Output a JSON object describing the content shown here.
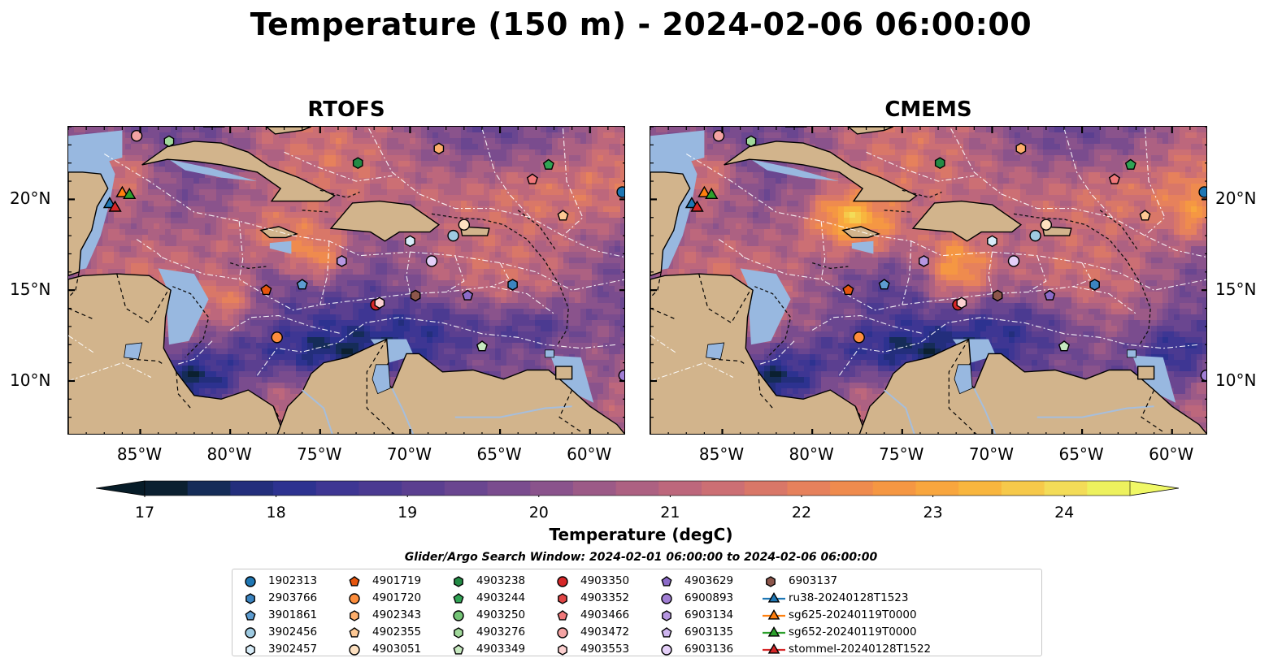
{
  "title": "Temperature (150 m) - 2024-02-06 06:00:00",
  "panels": [
    {
      "title": "RTOFS"
    },
    {
      "title": "CMEMS"
    }
  ],
  "map": {
    "lon_range": [
      -89,
      -58
    ],
    "lat_range": [
      7,
      24
    ],
    "lat_ticks": [
      {
        "value": 20,
        "label": "20°N"
      },
      {
        "value": 15,
        "label": "15°N"
      },
      {
        "value": 10,
        "label": "10°N"
      }
    ],
    "lon_ticks": [
      {
        "value": -85,
        "label": "85°W"
      },
      {
        "value": -80,
        "label": "80°W"
      },
      {
        "value": -75,
        "label": "75°W"
      },
      {
        "value": -70,
        "label": "70°W"
      },
      {
        "value": -65,
        "label": "65°W"
      },
      {
        "value": -60,
        "label": "60°W"
      }
    ],
    "land_color": "#d2b48c",
    "shelf_color": "#98b8e0"
  },
  "colorbar": {
    "min": 17,
    "max": 24.5,
    "ticks": [
      "17",
      "18",
      "19",
      "20",
      "21",
      "22",
      "23",
      "24"
    ],
    "label": "Temperature (degC)",
    "colors": [
      "#0b2030",
      "#152c58",
      "#232e7c",
      "#2d3290",
      "#3e3693",
      "#4b3a91",
      "#5b3f90",
      "#6a4690",
      "#7a4c8e",
      "#8a538c",
      "#9c5a87",
      "#ad6182",
      "#bd677c",
      "#cc6f74",
      "#d97768",
      "#e6815c",
      "#ef8b4e",
      "#f59743",
      "#f8a63e",
      "#f8b63e",
      "#f6c94a",
      "#f3dc58",
      "#edf15e"
    ],
    "under_color": "#071c28",
    "over_color": "#f0f866"
  },
  "search_window": "Glider/Argo Search Window: 2024-02-01 06:00:00 to 2024-02-06 06:00:00",
  "legend": [
    {
      "label": "1902313",
      "shape": "circle",
      "color": "#1f77b4"
    },
    {
      "label": "2903766",
      "shape": "hexagon",
      "color": "#3b84c0"
    },
    {
      "label": "3901861",
      "shape": "pentagon",
      "color": "#5d9cd0"
    },
    {
      "label": "3902456",
      "shape": "circle",
      "color": "#9ecae1"
    },
    {
      "label": "3902457",
      "shape": "hexagon",
      "color": "#d7ecf8"
    },
    {
      "label": "4901719",
      "shape": "pentagon",
      "color": "#e6550d"
    },
    {
      "label": "4901720",
      "shape": "circle",
      "color": "#fd8d3c"
    },
    {
      "label": "4902343",
      "shape": "hexagon",
      "color": "#fdae6b"
    },
    {
      "label": "4902355",
      "shape": "pentagon",
      "color": "#fdc894"
    },
    {
      "label": "4903051",
      "shape": "circle",
      "color": "#fde0c0"
    },
    {
      "label": "4903238",
      "shape": "hexagon",
      "color": "#238b45"
    },
    {
      "label": "4903244",
      "shape": "pentagon",
      "color": "#31a354"
    },
    {
      "label": "4903250",
      "shape": "circle",
      "color": "#74c476"
    },
    {
      "label": "4903276",
      "shape": "hexagon",
      "color": "#a1d99b"
    },
    {
      "label": "4903349",
      "shape": "pentagon",
      "color": "#c7e9c0"
    },
    {
      "label": "4903350",
      "shape": "circle",
      "color": "#d62728"
    },
    {
      "label": "4903352",
      "shape": "hexagon",
      "color": "#e04545"
    },
    {
      "label": "4903466",
      "shape": "pentagon",
      "color": "#f0787a"
    },
    {
      "label": "4903472",
      "shape": "circle",
      "color": "#f4a3a3"
    },
    {
      "label": "4903553",
      "shape": "hexagon",
      "color": "#fcd0d0"
    },
    {
      "label": "4903629",
      "shape": "pentagon",
      "color": "#8c6bc8"
    },
    {
      "label": "6900893",
      "shape": "circle",
      "color": "#a17ed4"
    },
    {
      "label": "6903134",
      "shape": "hexagon",
      "color": "#b696e0"
    },
    {
      "label": "6903135",
      "shape": "pentagon",
      "color": "#cdb4ee"
    },
    {
      "label": "6903136",
      "shape": "circle",
      "color": "#e4cff8"
    },
    {
      "label": "6903137",
      "shape": "hexagon",
      "color": "#8c564b"
    },
    {
      "label": "ru38-20240128T1523",
      "shape": "triangle-line",
      "color": "#1f77b4"
    },
    {
      "label": "sg625-20240119T0000",
      "shape": "triangle-line",
      "color": "#ff7f0e"
    },
    {
      "label": "sg652-20240119T0000",
      "shape": "triangle-line",
      "color": "#2ca02c"
    },
    {
      "label": "stommel-20240128T1522",
      "shape": "triangle-line",
      "color": "#d62728"
    }
  ],
  "floats": [
    {
      "id": "1902313",
      "lon": -58.2,
      "lat": 20.4
    },
    {
      "id": "3902456",
      "lon": -67.6,
      "lat": 18.0
    },
    {
      "id": "4903051",
      "lon": -67.0,
      "lat": 18.6
    },
    {
      "id": "4901720",
      "lon": -77.4,
      "lat": 12.4
    },
    {
      "id": "4901719",
      "lon": -78.0,
      "lat": 15.0
    },
    {
      "id": "3901861",
      "lon": -76.0,
      "lat": 15.3
    },
    {
      "id": "4903244",
      "lon": -62.3,
      "lat": 21.9
    },
    {
      "id": "4903238",
      "lon": -72.9,
      "lat": 22.0
    },
    {
      "id": "4903350",
      "lon": -71.9,
      "lat": 14.2
    },
    {
      "id": "4903466",
      "lon": -63.2,
      "lat": 21.1
    },
    {
      "id": "4903629",
      "lon": -66.8,
      "lat": 14.7
    },
    {
      "id": "6903134",
      "lon": -73.8,
      "lat": 16.6
    },
    {
      "id": "6903136",
      "lon": -68.8,
      "lat": 16.6
    },
    {
      "id": "6903137",
      "lon": -69.7,
      "lat": 14.7
    },
    {
      "id": "4902343",
      "lon": -68.4,
      "lat": 22.8
    },
    {
      "id": "4902355",
      "lon": -61.5,
      "lat": 19.1
    },
    {
      "id": "3902457",
      "lon": -70.0,
      "lat": 17.7
    },
    {
      "id": "2903766",
      "lon": -64.3,
      "lat": 15.3
    },
    {
      "id": "4903349",
      "lon": -66.0,
      "lat": 11.9
    },
    {
      "id": "4903553",
      "lon": -71.7,
      "lat": 14.3
    },
    {
      "id": "6900893",
      "lon": -58.1,
      "lat": 10.3
    },
    {
      "id": "4903472",
      "lon": -85.2,
      "lat": 23.5
    },
    {
      "id": "4903276",
      "lon": -83.4,
      "lat": 23.2
    }
  ],
  "gliders": [
    {
      "id": "ru38-20240128T1523",
      "lon": -86.7,
      "lat": 19.8
    },
    {
      "id": "sg625-20240119T0000",
      "lon": -86.0,
      "lat": 20.4
    },
    {
      "id": "sg652-20240119T0000",
      "lon": -85.6,
      "lat": 20.3
    },
    {
      "id": "stommel-20240128T1522",
      "lon": -86.4,
      "lat": 19.6
    }
  ]
}
